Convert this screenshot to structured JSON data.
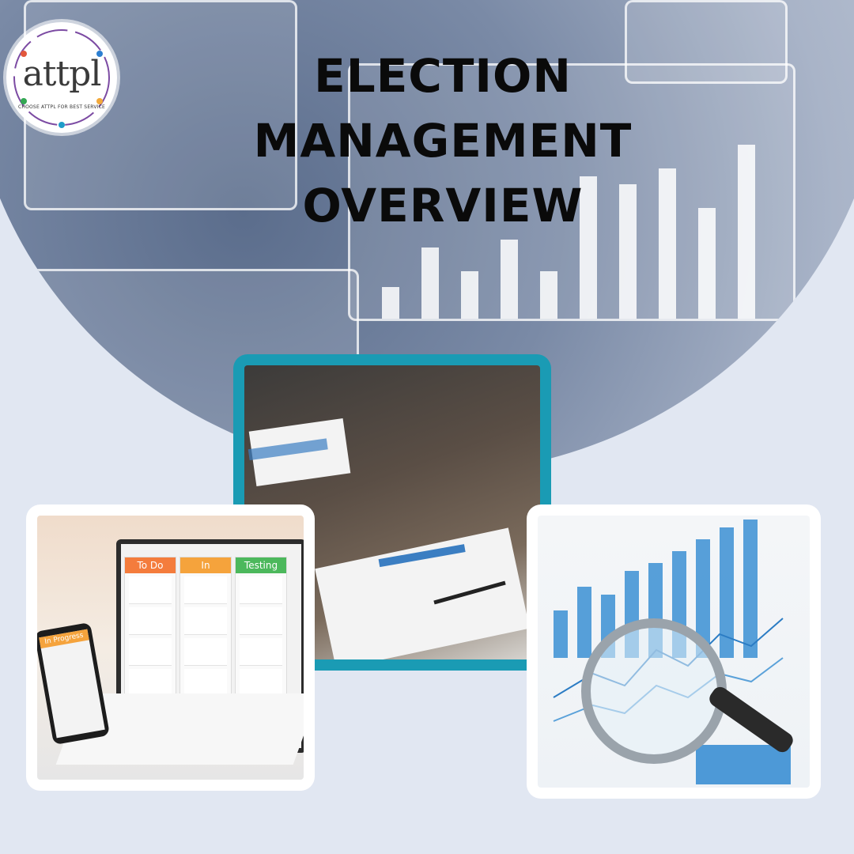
{
  "logo": {
    "name": "attpl",
    "tagline": "CHOOSE ATTPL FOR BEST SERVICE"
  },
  "title": {
    "line1": "ELECTION",
    "line2": "MANAGEMENT",
    "line3": "OVERVIEW"
  },
  "kanban": {
    "columns": [
      {
        "label": "To Do",
        "color": "#f47c3c"
      },
      {
        "label": "In Progress",
        "color": "#f5a33c"
      },
      {
        "label": "Testing",
        "color": "#4cb85c"
      }
    ],
    "phone_label": "In Progress"
  },
  "colors": {
    "background": "#e1e7f2",
    "frame_teal": "#1a9bb4",
    "title": "#0a0a0a"
  }
}
